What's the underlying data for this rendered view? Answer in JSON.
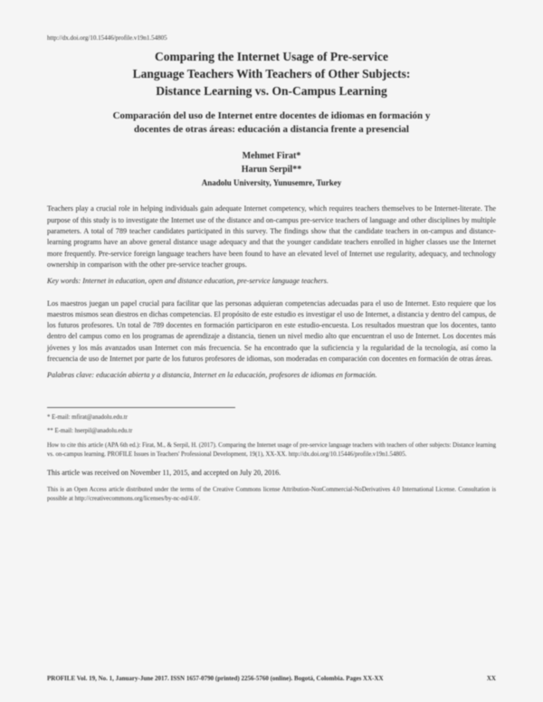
{
  "doi": "http://dx.doi.org/10.15446/profile.v19n1.54805",
  "title_en_line1": "Comparing the Internet Usage of Pre-service",
  "title_en_line2": "Language Teachers With Teachers of Other Subjects:",
  "title_en_line3": "Distance Learning vs. On-Campus Learning",
  "title_es_line1": "Comparación del uso de Internet entre docentes de idiomas en formación y",
  "title_es_line2": "docentes de otras áreas: educación a distancia frente a presencial",
  "author1": "Mehmet Firat*",
  "author2": "Harun Serpil**",
  "affiliation": "Anadolu University, Yunusemre, Turkey",
  "abstract_en": "Teachers play a crucial role in helping individuals gain adequate Internet competency, which requires teachers themselves to be Internet-literate. The purpose of this study is to investigate the Internet use of the distance and on-campus pre-service teachers of language and other disciplines by multiple parameters. A total of 789 teacher candidates participated in this survey. The findings show that the candidate teachers in on-campus and distance-learning programs have an above general distance usage adequacy and that the younger candidate teachers enrolled in higher classes use the Internet more frequently. Pre-service foreign language teachers have been found to have an elevated level of Internet use regularity, adequacy, and technology ownership in comparison with the other pre-service teacher groups.",
  "keywords_en": "Key words: Internet in education, open and distance education, pre-service language teachers.",
  "abstract_es": "Los maestros juegan un papel crucial para facilitar que las personas adquieran competencias adecuadas para el uso de Internet. Esto requiere que los maestros mismos sean diestros en dichas competencias. El propósito de este estudio es investigar el uso de Internet, a distancia y dentro del campus, de los futuros profesores. Un total de 789 docentes en formación participaron en este estudio-encuesta. Los resultados muestran que los docentes, tanto dentro del campus como en los programas de aprendizaje a distancia, tienen un nivel medio alto que encuentran el uso de Internet. Los docentes más jóvenes y los más avanzados usan Internet con más frecuencia. Se ha encontrado que la suficiencia y la regularidad de la tecnología, así como la frecuencia de uso de Internet por parte de los futuros profesores de idiomas, son moderadas en comparación con docentes en formación de otras áreas.",
  "keywords_es": "Palabras clave: educación abierta y a distancia, Internet en la educación, profesores de idiomas en formación.",
  "footnote1": "* E-mail: mfirat@anadolu.edu.tr",
  "footnote2": "** E-mail: hserpil@anadolu.edu.tr",
  "howtocite": "How to cite this article (APA 6th ed.): Firat, M., & Serpil, H. (2017). Comparing the Internet usage of pre-service language teachers with teachers of other subjects: Distance learning vs. on-campus learning. PROFILE Issues in Teachers' Professional Development, 19(1), XX-XX. http://dx.doi.org/10.15446/profile.v19n1.54805.",
  "received": "This article was received on November 11, 2015, and accepted on July 20, 2016.",
  "license": "This is an Open Access article distributed under the terms of the Creative Commons license Attribution-NonCommercial-NoDerivatives 4.0 International License. Consultation is possible at http://creativecommons.org/licenses/by-nc-nd/4.0/.",
  "footer_left": "PROFILE Vol. 19, No. 1, January-June 2017. ISSN 1657-0790 (printed) 2256-5760 (online). Bogotá, Colombia. Pages XX-XX",
  "footer_right": "XX"
}
